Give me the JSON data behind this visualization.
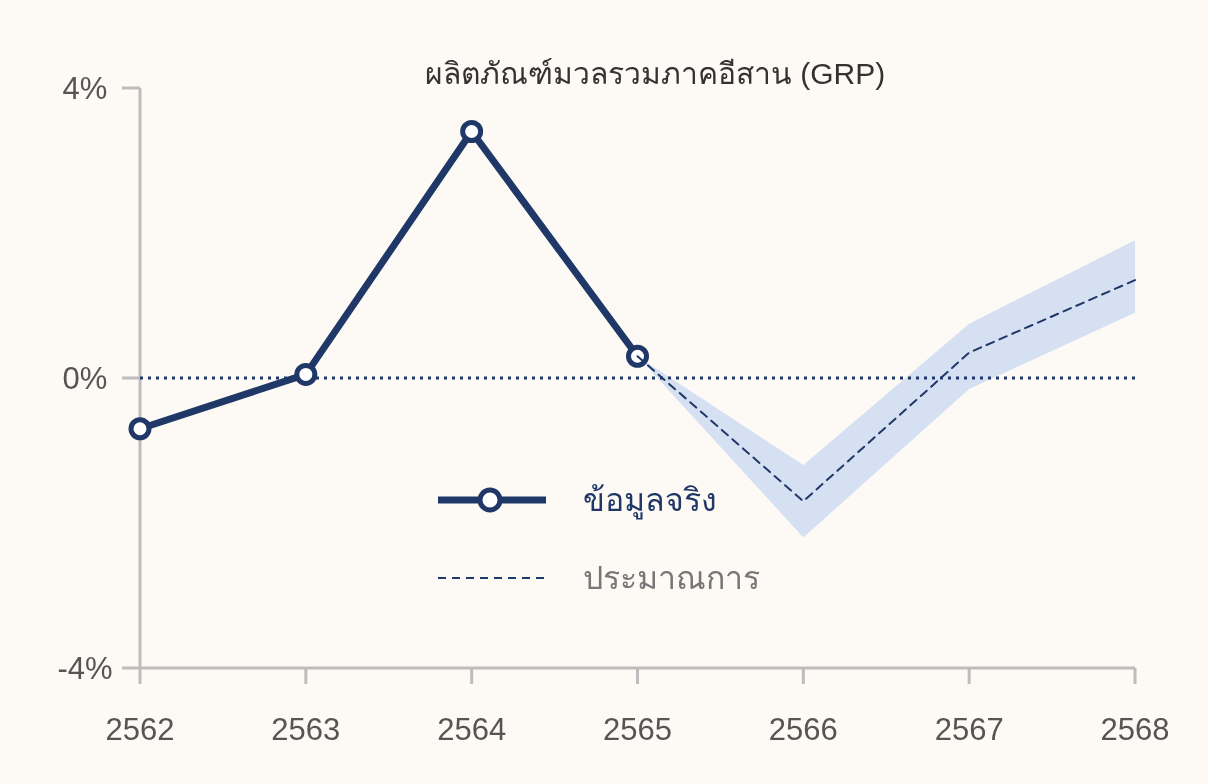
{
  "chart_data": {
    "type": "line",
    "title": "ผลิตภัณฑ์มวลรวมภาคอีสาน (GRP)",
    "xlim": [
      2562,
      2568
    ],
    "xticks": [
      2562,
      2563,
      2564,
      2565,
      2566,
      2567,
      2568
    ],
    "ylim": [
      -4,
      4
    ],
    "yticks": [
      {
        "value": -4,
        "label": "-4%"
      },
      {
        "value": 0,
        "label": "0%"
      },
      {
        "value": 4,
        "label": "4%"
      }
    ],
    "grid": false,
    "legend": "center",
    "ref_lines": [
      {
        "axis": "y",
        "value": 0,
        "color": "#1f3868",
        "line_style": "dotted"
      }
    ],
    "series": [
      {
        "name": "ข้อมูลจริง",
        "color": "#1f3868",
        "x": [
          2562,
          2563,
          2564,
          2565
        ],
        "values": [
          -0.7,
          0.05,
          3.4,
          0.3
        ],
        "marker": "circle",
        "line_style": "solid"
      },
      {
        "name": "ประมาณการ",
        "color": "#1f3868",
        "x": [
          2565,
          2566,
          2567,
          2568
        ],
        "values": [
          0.3,
          -1.7,
          0.35,
          1.35
        ],
        "lower": [
          0.3,
          -2.2,
          -0.15,
          0.9
        ],
        "upper": [
          0.3,
          -1.2,
          0.75,
          1.9
        ],
        "marker": "none",
        "line_style": "dashed"
      }
    ]
  }
}
